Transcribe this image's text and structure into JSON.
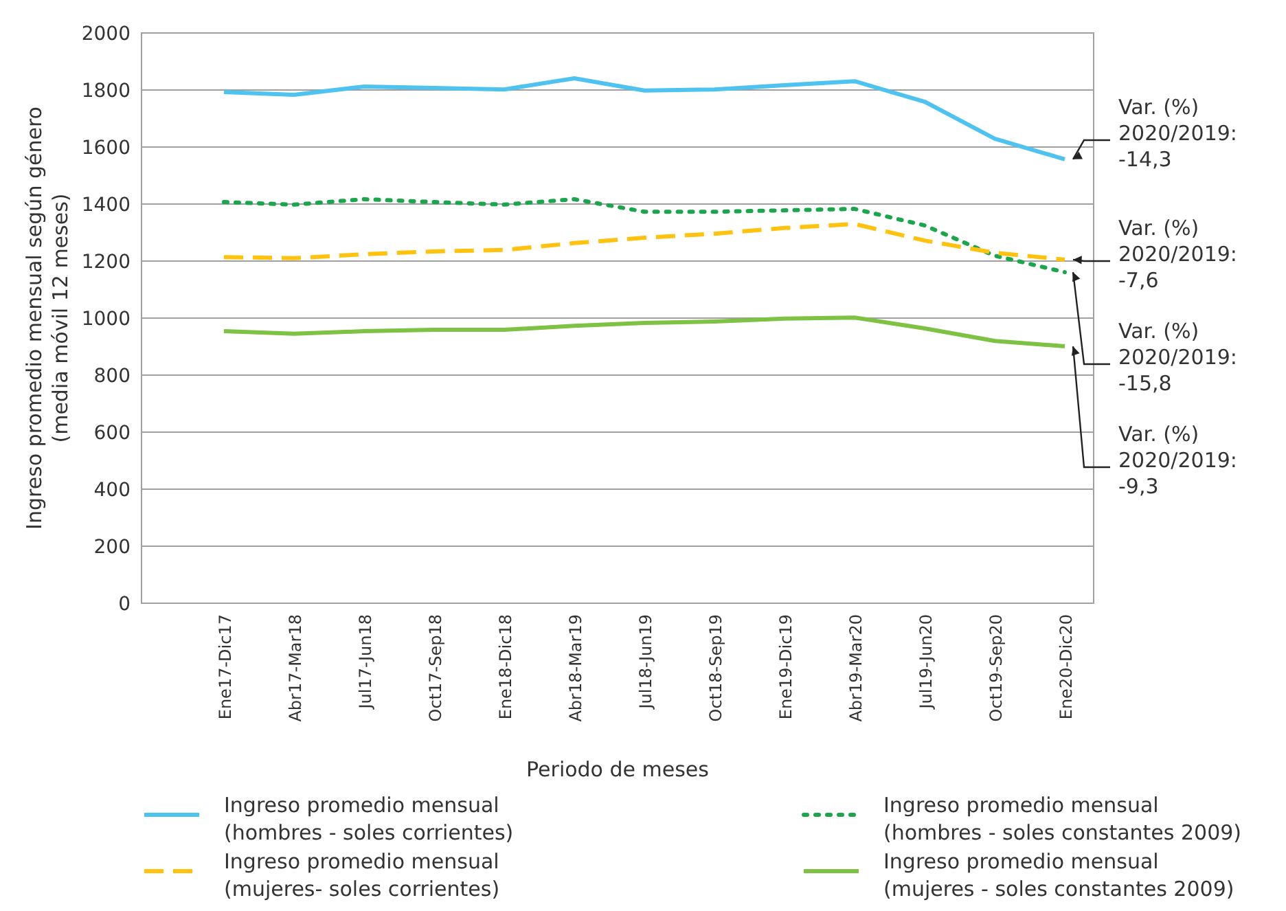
{
  "chart_data": {
    "type": "line",
    "xlabel": "Periodo de meses",
    "ylabel": "Ingreso promedio mensual según género\n(media móvil 12 meses)",
    "categories": [
      "Ene17-Dic17",
      "Abr17-Mar18",
      "Jul17-Jun18",
      "Oct17-Sep18",
      "Ene18-Dic18",
      "Abr18-Mar19",
      "Jul18-Jun19",
      "Oct18-Sep19",
      "Ene19-Dic19",
      "Abr19-Mar20",
      "Jul19-Jun20",
      "Oct19-Sep20",
      "Ene20-Dic20"
    ],
    "series": [
      {
        "name": "Ingreso promedio mensual\n(hombres - soles corrientes)",
        "color": "#4fc3f0",
        "line_style": "solid",
        "values": [
          1793,
          1783,
          1812,
          1807,
          1802,
          1841,
          1798,
          1802,
          1817,
          1831,
          1759,
          1629,
          1557
        ]
      },
      {
        "name": "Ingreso promedio mensual\n(hombres - soles constantes 2009)",
        "color": "#1aa64a",
        "line_style": "dotted",
        "values": [
          1407,
          1398,
          1417,
          1407,
          1398,
          1417,
          1373,
          1373,
          1378,
          1383,
          1325,
          1219,
          1161
        ]
      },
      {
        "name": "Ingreso promedio mensual\n(mujeres- soles corrientes)",
        "color": "#ffc20e",
        "line_style": "dashed",
        "values": [
          1214,
          1210,
          1224,
          1234,
          1239,
          1263,
          1282,
          1296,
          1316,
          1330,
          1272,
          1229,
          1205
        ]
      },
      {
        "name": "Ingreso promedio mensual\n(mujeres - soles constantes 2009)",
        "color": "#7dc242",
        "line_style": "solid",
        "values": [
          954,
          945,
          954,
          959,
          959,
          973,
          983,
          988,
          998,
          1002,
          964,
          920,
          901
        ]
      }
    ],
    "ylim": [
      0,
      2000
    ],
    "yticks": [
      0,
      200,
      400,
      600,
      800,
      1000,
      1200,
      1400,
      1600,
      1800,
      2000
    ],
    "grid": "y",
    "legend": "bottom",
    "annotations": [
      {
        "text": "Var. (%)\n2020/2019:\n-14,3",
        "x": "Ene20-Dic20",
        "y": 1557
      },
      {
        "text": "Var. (%)\n2020/2019:\n-7,6",
        "x": "Ene20-Dic20",
        "y": 1205
      },
      {
        "text": "Var. (%)\n2020/2019:\n-15,8",
        "x": "Ene20-Dic20",
        "y": 1161
      },
      {
        "text": "Var. (%)\n2020/2019:\n-9,3",
        "x": "Ene20-Dic20",
        "y": 901
      }
    ]
  }
}
